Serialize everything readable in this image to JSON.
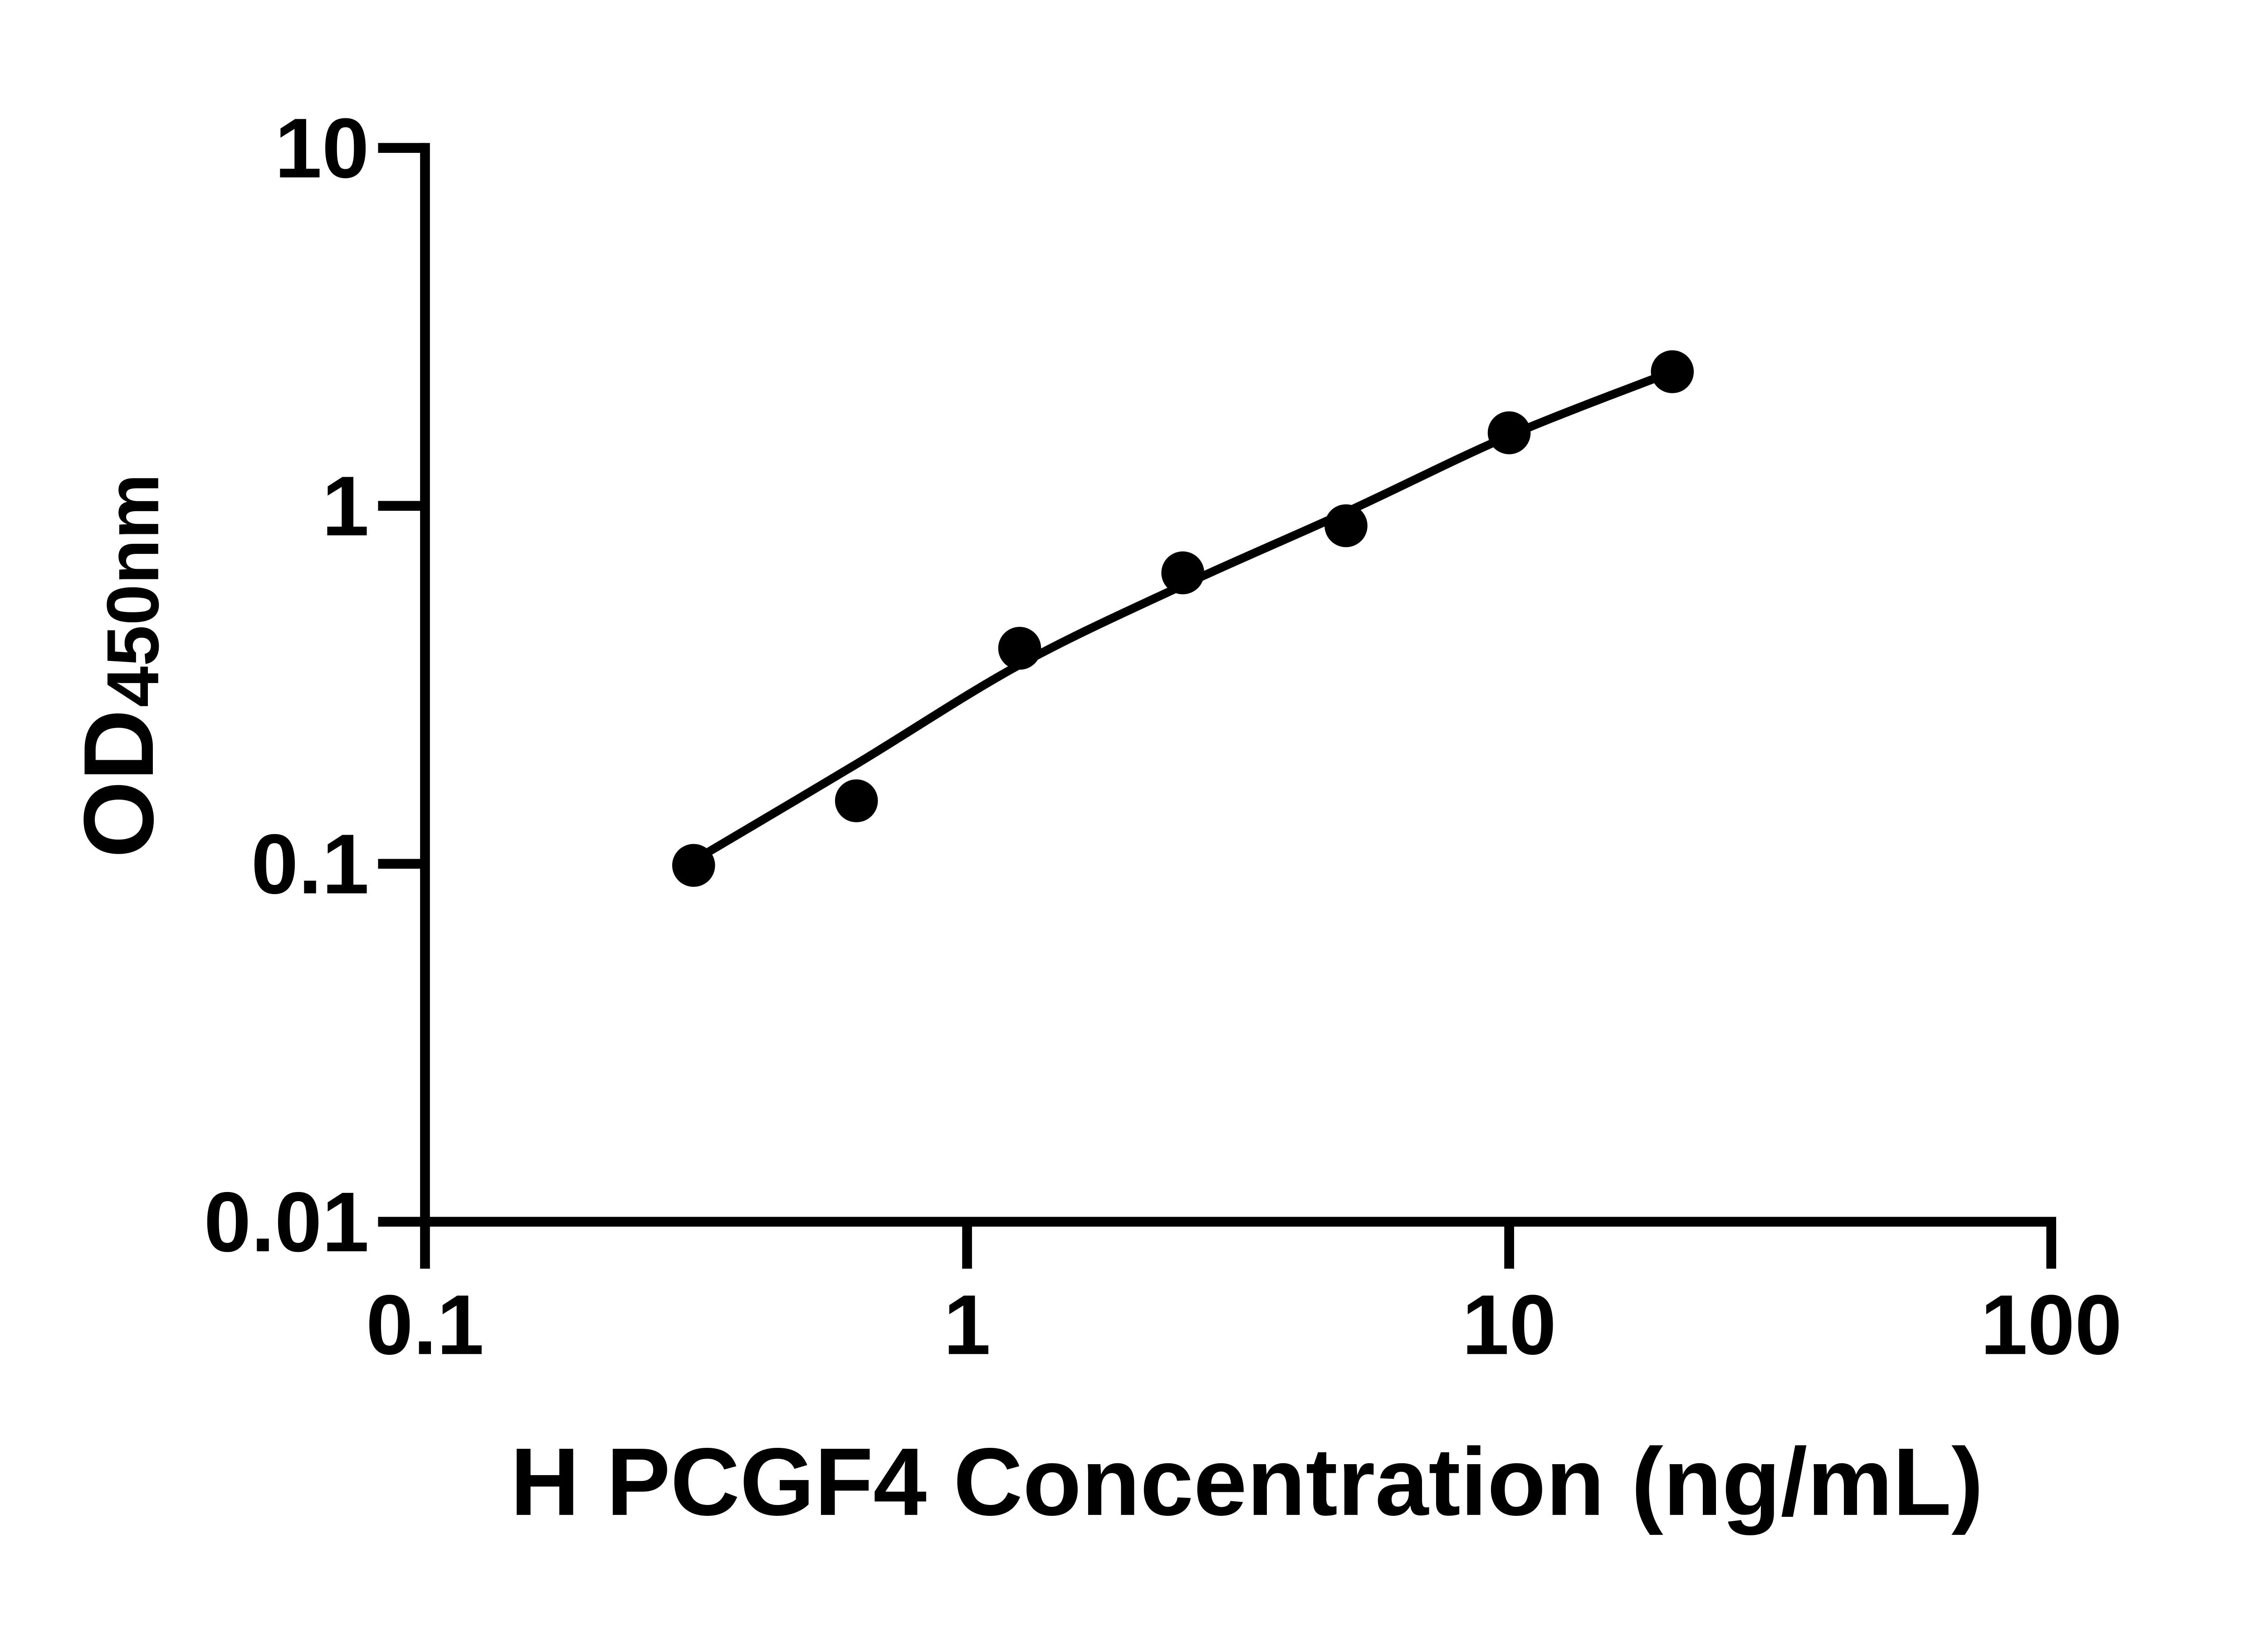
{
  "figure": {
    "background_color": "#ffffff",
    "foreground_color": "#000000"
  },
  "chart_data": {
    "type": "scatter",
    "title": "",
    "xlabel": "H PCGF4 Concentration (ng/mL)",
    "ylabel": "OD",
    "ylabel_subscript": "450nm",
    "x_axis": {
      "scale": "log10",
      "min": 0.1,
      "max": 100,
      "ticks": [
        0.1,
        1,
        10,
        100
      ],
      "tick_labels": [
        "0.1",
        "1",
        "10",
        "100"
      ]
    },
    "y_axis": {
      "scale": "log10",
      "min": 0.01,
      "max": 10,
      "ticks": [
        10,
        1,
        0.1,
        0.01
      ],
      "tick_labels": [
        "10",
        "1",
        "0.1",
        "0.01"
      ]
    },
    "grid": false,
    "legend": "none",
    "series": [
      {
        "name": "standard-points",
        "marker": "filled-circle",
        "color": "#000000",
        "x": [
          0.313,
          0.625,
          1.25,
          2.5,
          5,
          10,
          20
        ],
        "y": [
          0.099,
          0.15,
          0.4,
          0.65,
          0.88,
          1.6,
          2.37
        ]
      }
    ],
    "fit_curve": {
      "name": "fitted-standard-curve",
      "color": "#000000",
      "anchors_x": [
        0.313,
        0.625,
        1.25,
        2.5,
        5,
        10,
        20
      ],
      "anchors_y": [
        0.102,
        0.19,
        0.36,
        0.6,
        0.96,
        1.57,
        2.37
      ]
    }
  }
}
